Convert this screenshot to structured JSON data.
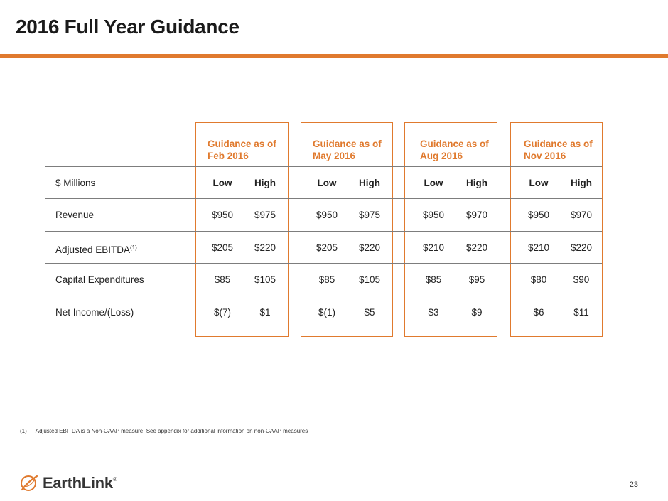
{
  "slide": {
    "title": "2016 Full Year Guidance",
    "page_number": "23"
  },
  "guidance_headers": [
    {
      "line1": "Guidance as of",
      "line2": "Feb 2016"
    },
    {
      "line1": "Guidance as of",
      "line2": "May 2016"
    },
    {
      "line1": "Guidance as of",
      "line2": "Aug 2016"
    },
    {
      "line1": "Guidance as of",
      "line2": "Nov 2016"
    }
  ],
  "table": {
    "unit_label": "$ Millions",
    "low_label": "Low",
    "high_label": "High",
    "rows": [
      {
        "label": "Revenue",
        "values": [
          "$950",
          "$975",
          "$950",
          "$975",
          "$950",
          "$970",
          "$950",
          "$970"
        ]
      },
      {
        "label": "Adjusted EBITDA",
        "sup": "(1)",
        "values": [
          "$205",
          "$220",
          "$205",
          "$220",
          "$210",
          "$220",
          "$210",
          "$220"
        ]
      },
      {
        "label": "Capital Expenditures",
        "values": [
          "$85",
          "$105",
          "$85",
          "$105",
          "$85",
          "$95",
          "$80",
          "$90"
        ]
      },
      {
        "label": "Net Income/(Loss)",
        "values": [
          "$(7)",
          "$1",
          "$(1)",
          "$5",
          "$3",
          "$9",
          "$6",
          "$11"
        ]
      }
    ]
  },
  "footnote": {
    "marker": "(1)",
    "text": "Adjusted EBITDA is a Non-GAAP measure.  See appendix for additional information on non-GAAP measures"
  },
  "brand": {
    "name": "EarthLink",
    "registered": "®",
    "logo_icon": "earthlink-orbit-icon",
    "accent_color": "#e07a2e"
  }
}
